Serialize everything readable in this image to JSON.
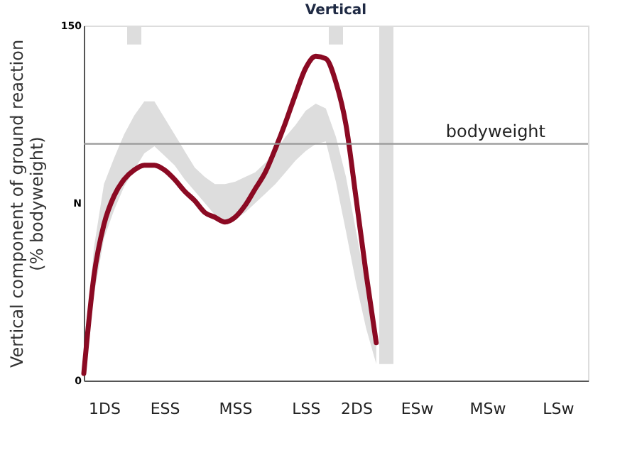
{
  "chart_data": {
    "type": "line",
    "title": "Vertical",
    "ylabel": "Vertical component of ground reaction\n(% bodyweight)",
    "categories": [
      null,
      null,
      "1DS",
      null,
      null,
      null,
      null,
      null,
      "ESS",
      null,
      null,
      null,
      null,
      null,
      null,
      "MSS",
      null,
      null,
      null,
      null,
      null,
      null,
      "LSS",
      null,
      null,
      null,
      null,
      "2DS",
      null,
      null,
      null,
      null,
      null,
      "ESw",
      null,
      null,
      null,
      null,
      null,
      null,
      "MSw",
      null,
      null,
      null,
      null,
      null,
      null,
      "LSw",
      null,
      null,
      null
    ],
    "ylim": [
      0,
      150
    ],
    "yticks": [
      0,
      {
        "value": 75,
        "label": "N"
      },
      150
    ],
    "grid": false,
    "marker": "none",
    "line_style": "solid",
    "series": [
      {
        "type": "area",
        "color": "#dddddd",
        "values": [
          null,
          null,
          null,
          null,
          null,
          null,
          null,
          null,
          null,
          null,
          null,
          null,
          null,
          null,
          null,
          null,
          null,
          null,
          null,
          null,
          null,
          null,
          null,
          null,
          null,
          null,
          null,
          null,
          null,
          null,
          null,
          null,
          null,
          null,
          null,
          null,
          null,
          null,
          null,
          null,
          null,
          null,
          null,
          null,
          null,
          null,
          null,
          null,
          null,
          null,
          null
        ],
        "upper": [
          3,
          56,
          83,
          94,
          104,
          112,
          118,
          118,
          111,
          104,
          97,
          90,
          86,
          83,
          83,
          84,
          86,
          88,
          92,
          97,
          103,
          108,
          114,
          117,
          115,
          103,
          86,
          63,
          40,
          18,
          null,
          null,
          null,
          null,
          null,
          null,
          null,
          null,
          null,
          null,
          null,
          null,
          null,
          null,
          null,
          null,
          null,
          null,
          null,
          null,
          null
        ],
        "lower": [
          3,
          36,
          60,
          72,
          82,
          89,
          96,
          99,
          95,
          91,
          85,
          80,
          75,
          70,
          68,
          68,
          71,
          75,
          79,
          83,
          88,
          93,
          97,
          100,
          101,
          84,
          63,
          41,
          22,
          7,
          null,
          null,
          null,
          null,
          null,
          null,
          null,
          null,
          null,
          null,
          null,
          null,
          null,
          null,
          null,
          null,
          null,
          null,
          null,
          null,
          null
        ]
      },
      {
        "type": "bar",
        "color": "#dddddd",
        "base": [
          null,
          null,
          null,
          null,
          null,
          142,
          null,
          null,
          null,
          null,
          null,
          null,
          null,
          null,
          null,
          null,
          null,
          null,
          null,
          null,
          null,
          null,
          null,
          null,
          null,
          142,
          null,
          null,
          null,
          null,
          7,
          null,
          null,
          null,
          null,
          null,
          null,
          null,
          null,
          null,
          null,
          null,
          null,
          null,
          null,
          null,
          null,
          null,
          null,
          null,
          null
        ],
        "values": [
          null,
          null,
          null,
          null,
          null,
          8,
          null,
          null,
          null,
          null,
          null,
          null,
          null,
          null,
          null,
          null,
          null,
          null,
          null,
          null,
          null,
          null,
          null,
          null,
          null,
          8,
          null,
          null,
          null,
          null,
          143,
          null,
          null,
          null,
          null,
          null,
          null,
          null,
          null,
          null,
          null,
          null,
          null,
          null,
          null,
          null,
          null,
          null,
          null,
          null,
          null
        ]
      },
      {
        "color": "#8b0a23",
        "values": [
          3,
          44,
          66,
          78,
          85,
          89,
          91,
          91,
          89,
          85,
          80,
          76,
          71,
          69,
          67,
          69,
          74,
          81,
          88,
          98,
          109,
          121,
          132,
          137,
          136,
          126,
          108,
          77,
          45,
          16,
          null,
          null,
          null,
          null,
          null,
          null,
          null,
          null,
          null,
          null,
          null,
          null,
          null,
          null,
          null,
          null,
          null,
          null,
          null,
          null,
          null
        ]
      }
    ],
    "ref_lines": [
      {
        "axis": "y",
        "value": 100,
        "label": "bodyweight",
        "color": "#999999",
        "line_style": "solid"
      }
    ]
  }
}
